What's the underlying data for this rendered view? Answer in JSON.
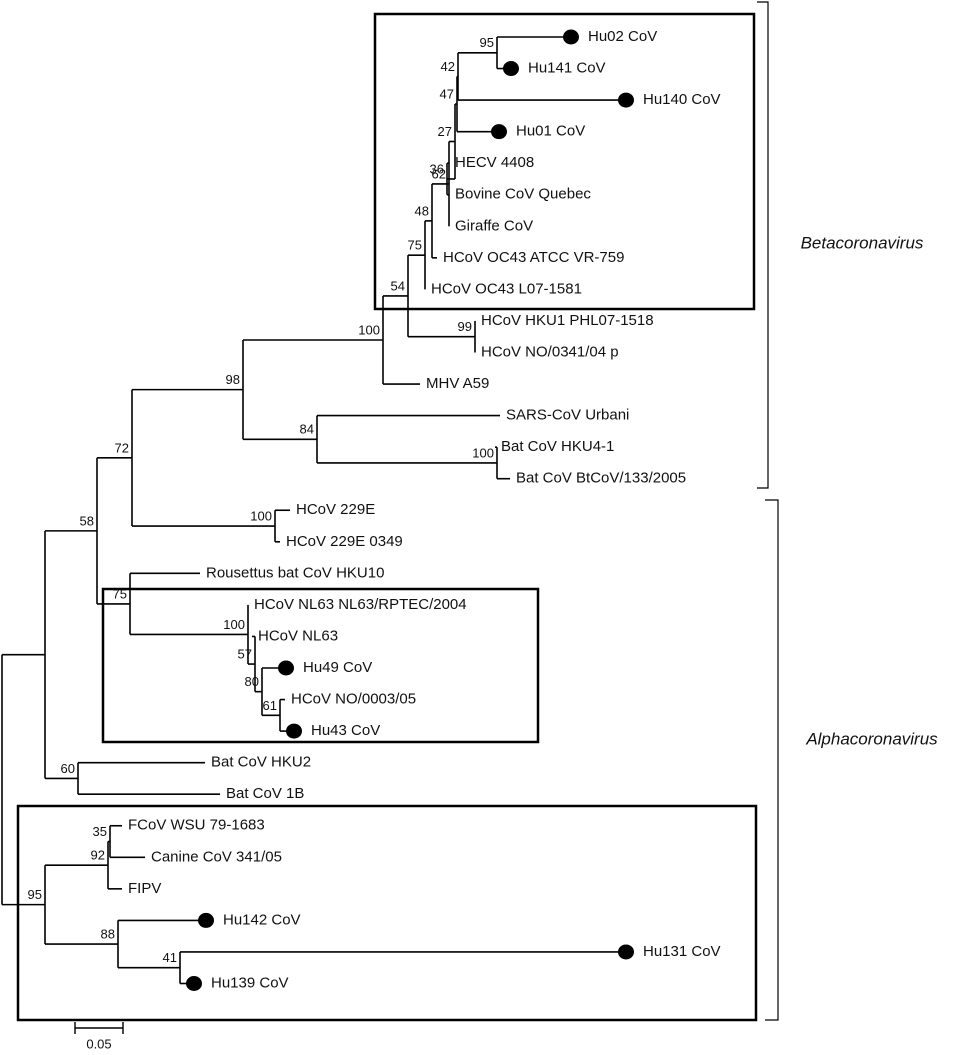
{
  "leaves": [
    "Hu02 CoV",
    "Hu141 CoV",
    "Hu140 CoV",
    "Hu01 CoV",
    "HECV 4408",
    "Bovine CoV Quebec",
    "Giraffe CoV",
    "HCoV OC43 ATCC VR-759",
    "HCoV OC43 L07-1581",
    "HCoV HKU1 PHL07-1518",
    "HCoV NO/0341/04 p",
    "MHV A59",
    "SARS-CoV Urbani",
    "Bat CoV HKU4-1",
    "Bat CoV BtCoV/133/2005",
    "HCoV 229E",
    "HCoV 229E 0349",
    "Rousettus bat CoV HKU10",
    "HCoV NL63 NL63/RPTEC/2004",
    "HCoV NL63",
    "Hu49 CoV",
    "HCoV NO/0003/05",
    "Hu43 CoV",
    "Bat CoV HKU2",
    "Bat CoV 1B",
    "FCoV WSU 79-1683",
    "Canine CoV 341/05",
    "FIPV",
    "Hu142 CoV",
    "Hu131 CoV",
    "Hu139 CoV"
  ],
  "bootstrap": [
    95,
    42,
    47,
    36,
    27,
    62,
    48,
    75,
    99,
    54,
    100,
    100,
    84,
    98,
    100,
    72,
    61,
    80,
    57,
    100,
    75,
    58,
    60,
    35,
    92,
    41,
    88,
    95
  ],
  "clades": [
    "Betacoronavirus",
    "Alphacoronavirus"
  ],
  "scale_bar": "0.05"
}
